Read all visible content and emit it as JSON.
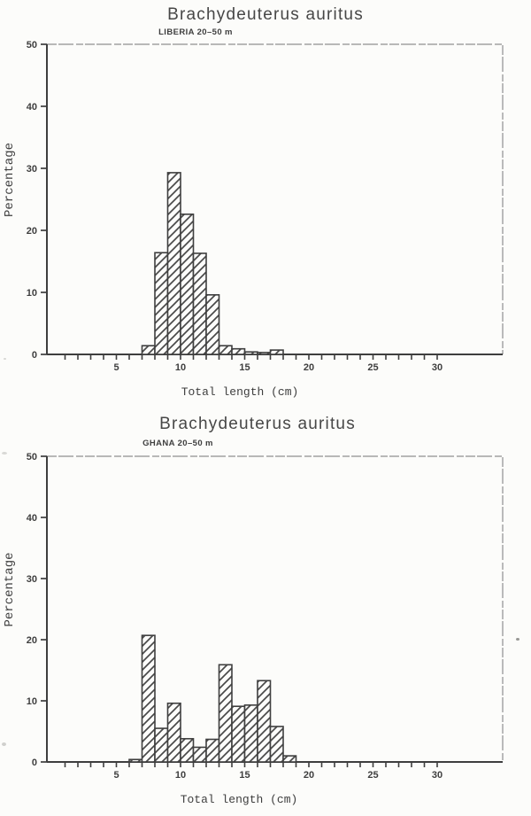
{
  "page": {
    "background": "#fcfcfa",
    "ink": "#3e3e3e",
    "frame_color": "#7d7d7d",
    "hatch_style": "diagonal-forward-slash"
  },
  "chart_data": [
    {
      "type": "bar",
      "title": "Brachydeuterus auritus",
      "subtitle": "LIBERIA  20–50 m",
      "xlabel": "Total length (cm)",
      "ylabel": "Percentage",
      "bin_width_cm": 1,
      "bin_start_cm": [
        7,
        8,
        9,
        10,
        11,
        12,
        13,
        14,
        15,
        16,
        17
      ],
      "values_pct": [
        1.4,
        16.4,
        29.3,
        22.6,
        16.3,
        9.6,
        1.4,
        0.9,
        0.4,
        0.3,
        0.7
      ],
      "ylim": [
        0,
        50
      ],
      "yticks": [
        0,
        10,
        20,
        30,
        40,
        50
      ],
      "xticks_labeled": [
        5,
        10,
        15,
        20,
        25,
        30
      ],
      "xtick_minor_step_cm": 1,
      "xtick_range_cm": [
        1,
        30
      ],
      "grid": false,
      "legend": false
    },
    {
      "type": "bar",
      "title": "Brachydeuterus auritus",
      "subtitle": "GHANA  20–50 m",
      "xlabel": "Total length (cm)",
      "ylabel": "Percentage",
      "bin_width_cm": 1,
      "bin_start_cm": [
        6,
        7,
        8,
        9,
        10,
        11,
        12,
        13,
        14,
        15,
        16,
        17,
        18
      ],
      "values_pct": [
        0.4,
        20.7,
        5.5,
        9.6,
        3.8,
        2.4,
        3.7,
        15.9,
        9.1,
        9.3,
        13.3,
        5.8,
        1.0
      ],
      "ylim": [
        0,
        50
      ],
      "yticks": [
        0,
        10,
        20,
        30,
        40,
        50
      ],
      "xticks_labeled": [
        5,
        10,
        15,
        20,
        25,
        30
      ],
      "xtick_minor_step_cm": 1,
      "xtick_range_cm": [
        1,
        30
      ],
      "grid": false,
      "legend": false
    }
  ]
}
